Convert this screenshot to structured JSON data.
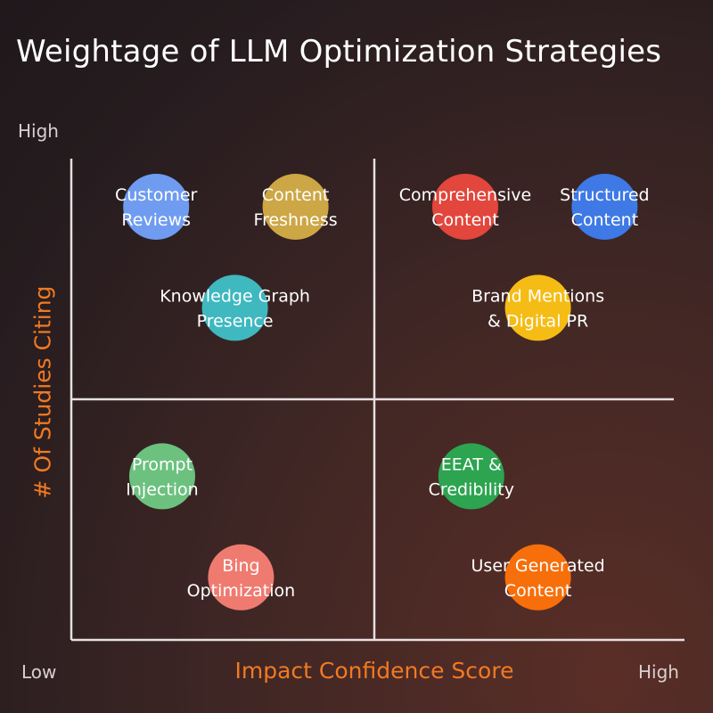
{
  "chart_data": {
    "type": "scatter",
    "title": "Weightage of LLM Optimization Strategies",
    "xlabel": "Impact Confidence Score",
    "ylabel": "# Of Studies Citing",
    "x_low_label": "Low",
    "x_high_label": "High",
    "y_high_label": "High",
    "xlim": [
      0,
      10
    ],
    "ylim": [
      0,
      10
    ],
    "quadrant_divider": {
      "x": 5,
      "y": 5
    },
    "points": [
      {
        "label": [
          "Customer",
          "Reviews"
        ],
        "x": 1.4,
        "y": 9.0,
        "color": "#6f9cf0"
      },
      {
        "label": [
          "Content",
          "Freshness"
        ],
        "x": 3.7,
        "y": 9.0,
        "color": "#cda645"
      },
      {
        "label": [
          "Comprehensive",
          "Content"
        ],
        "x": 6.5,
        "y": 9.0,
        "color": "#e2463c"
      },
      {
        "label": [
          "Structured",
          "Content"
        ],
        "x": 8.8,
        "y": 9.0,
        "color": "#3e79e6"
      },
      {
        "label": [
          "Knowledge Graph",
          "Presence"
        ],
        "x": 2.7,
        "y": 6.9,
        "color": "#3fb8bf"
      },
      {
        "label": [
          "Brand Mentions",
          "& Digital PR"
        ],
        "x": 7.7,
        "y": 6.9,
        "color": "#f5bc15"
      },
      {
        "label": [
          "Prompt",
          "Injection"
        ],
        "x": 1.5,
        "y": 3.4,
        "color": "#6cc17f"
      },
      {
        "label": [
          "EEAT &",
          "Credibility"
        ],
        "x": 6.6,
        "y": 3.4,
        "color": "#2da450"
      },
      {
        "label": [
          "Bing",
          "Optimization"
        ],
        "x": 2.8,
        "y": 1.3,
        "color": "#ef7b70"
      },
      {
        "label": [
          "User Generated",
          "Content"
        ],
        "x": 7.7,
        "y": 1.3,
        "color": "#f76f0a"
      }
    ]
  }
}
